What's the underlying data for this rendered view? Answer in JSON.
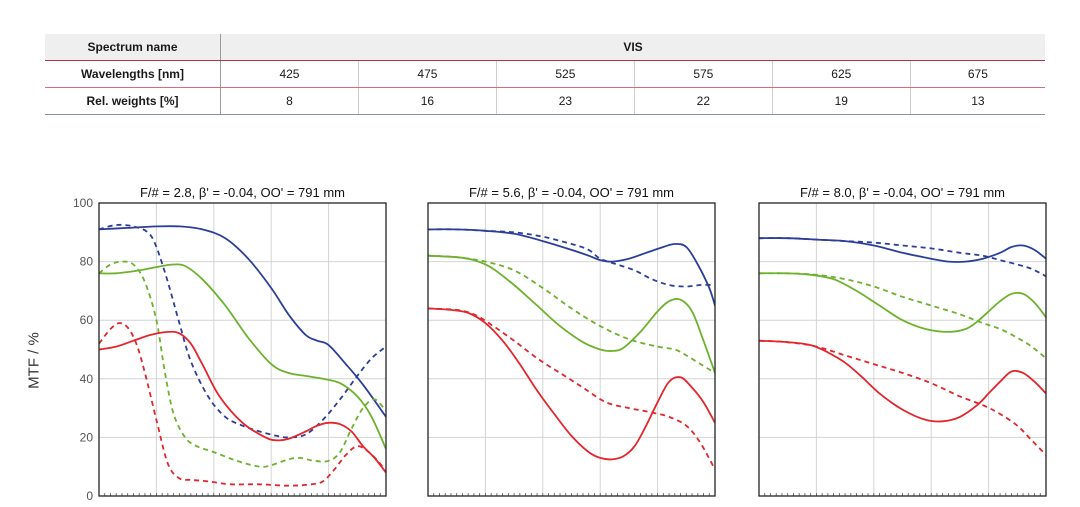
{
  "table": {
    "rows": [
      {
        "label": "Spectrum name",
        "values": [
          "VIS"
        ]
      },
      {
        "label": "Wavelengths [nm]",
        "values": [
          "425",
          "475",
          "525",
          "575",
          "625",
          "675"
        ]
      },
      {
        "label": "Rel. weights [%]",
        "values": [
          "8",
          "16",
          "23",
          "22",
          "19",
          "13"
        ]
      }
    ]
  },
  "colors": {
    "blue": "#2b3f9a",
    "green": "#6cb22d",
    "red": "#e2262c",
    "grid": "#d4d4d4",
    "frame": "#222222"
  },
  "chart_data": [
    {
      "type": "line",
      "title": "F/# = 2.8, β' = -0.04, OO' = 791 mm",
      "ylabel": "MTF / %",
      "xlabel": "",
      "ylim": [
        0,
        100
      ],
      "xlim": [
        0,
        1
      ],
      "yticks": [
        "0",
        "20",
        "40",
        "60",
        "80",
        "100"
      ],
      "grid": true,
      "series": [
        {
          "color": "blue",
          "style": "solid",
          "x": [
            0,
            0.1,
            0.2,
            0.28,
            0.36,
            0.44,
            0.52,
            0.6,
            0.66,
            0.72,
            0.76,
            0.8,
            0.86,
            0.92,
            1.0
          ],
          "y": [
            91,
            91.5,
            92,
            92,
            91,
            88,
            81,
            71,
            62,
            55,
            53,
            51.5,
            45,
            38,
            27
          ]
        },
        {
          "color": "blue",
          "style": "dashed",
          "x": [
            0,
            0.06,
            0.12,
            0.17,
            0.2,
            0.24,
            0.28,
            0.32,
            0.38,
            0.44,
            0.5,
            0.56,
            0.62,
            0.66,
            0.72,
            0.78,
            0.84,
            0.9,
            0.95,
            1.0
          ],
          "y": [
            91,
            92.5,
            92,
            90,
            85,
            73,
            59,
            46,
            34,
            27,
            24,
            22,
            20.5,
            20,
            21,
            26,
            33,
            41,
            47,
            51
          ]
        },
        {
          "color": "green",
          "style": "solid",
          "x": [
            0,
            0.06,
            0.14,
            0.22,
            0.26,
            0.3,
            0.36,
            0.44,
            0.52,
            0.6,
            0.66,
            0.72,
            0.78,
            0.84,
            0.9,
            0.95,
            1.0
          ],
          "y": [
            76,
            76,
            77,
            78.5,
            79,
            78.5,
            74,
            65,
            54,
            45,
            42,
            41,
            40,
            38.5,
            34,
            27,
            16
          ]
        },
        {
          "color": "green",
          "style": "dashed",
          "x": [
            0,
            0.04,
            0.08,
            0.12,
            0.16,
            0.2,
            0.23,
            0.26,
            0.3,
            0.34,
            0.4,
            0.48,
            0.56,
            0.6,
            0.66,
            0.7,
            0.75,
            0.8,
            0.84,
            0.88,
            0.92,
            0.96,
            1.0
          ],
          "y": [
            76,
            79,
            80,
            79,
            73,
            60,
            42,
            28,
            20,
            17,
            15,
            12,
            10,
            10.5,
            12.5,
            13,
            12,
            12,
            15,
            23,
            30,
            33,
            29
          ]
        },
        {
          "color": "red",
          "style": "solid",
          "x": [
            0,
            0.06,
            0.12,
            0.18,
            0.24,
            0.28,
            0.32,
            0.36,
            0.42,
            0.5,
            0.58,
            0.62,
            0.66,
            0.72,
            0.76,
            0.8,
            0.84,
            0.88,
            0.92,
            0.96,
            1.0
          ],
          "y": [
            50,
            51,
            53,
            55,
            56,
            55.5,
            52,
            45,
            34,
            25,
            20,
            19,
            19.5,
            22,
            24,
            25,
            24.5,
            22,
            17,
            13,
            8
          ]
        },
        {
          "color": "red",
          "style": "dashed",
          "x": [
            0,
            0.04,
            0.07,
            0.1,
            0.13,
            0.16,
            0.2,
            0.24,
            0.28,
            0.32,
            0.38,
            0.46,
            0.56,
            0.66,
            0.74,
            0.78,
            0.82,
            0.86,
            0.9,
            0.94,
            0.98,
            1.0
          ],
          "y": [
            52,
            57,
            59,
            57.5,
            52,
            42,
            26,
            11,
            6,
            5.5,
            5,
            4,
            4,
            3.5,
            4,
            5,
            9,
            14,
            17,
            15,
            11,
            8
          ]
        }
      ]
    },
    {
      "type": "line",
      "title": "F/# = 5.6, β' = -0.04, OO' = 791 mm",
      "ylabel": "",
      "xlabel": "",
      "ylim": [
        0,
        100
      ],
      "xlim": [
        0,
        1
      ],
      "yticks": [],
      "grid": true,
      "series": [
        {
          "color": "blue",
          "style": "solid",
          "x": [
            0,
            0.1,
            0.2,
            0.3,
            0.4,
            0.5,
            0.56,
            0.6,
            0.64,
            0.7,
            0.76,
            0.82,
            0.86,
            0.9,
            0.94,
            0.98,
            1.0
          ],
          "y": [
            91,
            91,
            90.5,
            89.5,
            87,
            84,
            82,
            80.5,
            80,
            81,
            83,
            85,
            86,
            85,
            79,
            71,
            65
          ]
        },
        {
          "color": "blue",
          "style": "dashed",
          "x": [
            0,
            0.1,
            0.2,
            0.3,
            0.4,
            0.5,
            0.56,
            0.6,
            0.66,
            0.72,
            0.78,
            0.84,
            0.9,
            0.95,
            1.0
          ],
          "y": [
            91,
            91,
            90.5,
            90,
            88.5,
            86,
            84,
            81,
            79,
            77,
            74,
            72,
            71.5,
            72,
            72
          ]
        },
        {
          "color": "green",
          "style": "solid",
          "x": [
            0,
            0.1,
            0.16,
            0.22,
            0.3,
            0.38,
            0.46,
            0.54,
            0.6,
            0.64,
            0.68,
            0.74,
            0.8,
            0.84,
            0.88,
            0.92,
            0.96,
            1.0
          ],
          "y": [
            82,
            81.5,
            80.5,
            78,
            72,
            65,
            58,
            52.5,
            50,
            49.5,
            50.5,
            56,
            63,
            66.5,
            67,
            63,
            53,
            42
          ]
        },
        {
          "color": "green",
          "style": "dashed",
          "x": [
            0,
            0.1,
            0.2,
            0.3,
            0.4,
            0.5,
            0.6,
            0.7,
            0.8,
            0.86,
            0.9,
            0.95,
            1.0
          ],
          "y": [
            82,
            81.5,
            80,
            77,
            71,
            64,
            58,
            53.5,
            51,
            50,
            48,
            45,
            42
          ]
        },
        {
          "color": "red",
          "style": "solid",
          "x": [
            0,
            0.08,
            0.14,
            0.2,
            0.26,
            0.32,
            0.38,
            0.44,
            0.5,
            0.56,
            0.6,
            0.64,
            0.68,
            0.72,
            0.76,
            0.8,
            0.84,
            0.88,
            0.92,
            0.96,
            1.0
          ],
          "y": [
            64,
            63.5,
            62.5,
            59,
            53,
            45,
            36,
            28,
            20.5,
            15,
            13,
            12.5,
            13.5,
            17,
            24,
            32,
            39,
            40.5,
            37,
            32,
            25
          ]
        },
        {
          "color": "red",
          "style": "dashed",
          "x": [
            0,
            0.1,
            0.16,
            0.22,
            0.3,
            0.38,
            0.46,
            0.54,
            0.62,
            0.7,
            0.78,
            0.84,
            0.9,
            0.95,
            1.0
          ],
          "y": [
            64,
            63.5,
            62,
            58.5,
            53,
            47,
            42,
            37,
            32,
            30,
            28.5,
            27,
            24,
            18,
            9
          ]
        }
      ]
    },
    {
      "type": "line",
      "title": "F/# = 8.0, β' = -0.04, OO' = 791 mm",
      "ylabel": "",
      "xlabel": "",
      "ylim": [
        0,
        100
      ],
      "xlim": [
        0,
        1
      ],
      "yticks": [],
      "grid": true,
      "series": [
        {
          "color": "blue",
          "style": "solid",
          "x": [
            0,
            0.1,
            0.2,
            0.3,
            0.4,
            0.5,
            0.6,
            0.66,
            0.72,
            0.78,
            0.84,
            0.88,
            0.92,
            0.96,
            1.0
          ],
          "y": [
            88,
            88,
            87.5,
            87,
            85.5,
            83,
            81,
            80,
            80,
            81,
            83,
            85,
            85.5,
            84,
            81
          ]
        },
        {
          "color": "blue",
          "style": "dashed",
          "x": [
            0,
            0.1,
            0.2,
            0.3,
            0.4,
            0.5,
            0.6,
            0.7,
            0.78,
            0.84,
            0.9,
            0.95,
            1.0
          ],
          "y": [
            88,
            88,
            87.5,
            87,
            86.5,
            85.5,
            84.5,
            83,
            82,
            80.5,
            79,
            77.5,
            75
          ]
        },
        {
          "color": "green",
          "style": "solid",
          "x": [
            0,
            0.1,
            0.18,
            0.26,
            0.34,
            0.42,
            0.5,
            0.58,
            0.66,
            0.72,
            0.76,
            0.8,
            0.84,
            0.88,
            0.92,
            0.96,
            1.0
          ],
          "y": [
            76,
            76,
            75.5,
            74,
            70,
            65,
            60,
            57,
            56,
            57,
            59.5,
            63,
            66.5,
            69,
            69,
            66,
            61
          ]
        },
        {
          "color": "green",
          "style": "dashed",
          "x": [
            0,
            0.1,
            0.2,
            0.3,
            0.4,
            0.5,
            0.6,
            0.7,
            0.78,
            0.84,
            0.9,
            0.95,
            1.0
          ],
          "y": [
            76,
            76,
            75.5,
            74,
            71.5,
            68,
            65,
            62,
            59,
            57,
            54,
            51,
            47
          ]
        },
        {
          "color": "red",
          "style": "solid",
          "x": [
            0,
            0.1,
            0.18,
            0.24,
            0.3,
            0.36,
            0.42,
            0.5,
            0.58,
            0.64,
            0.7,
            0.76,
            0.8,
            0.84,
            0.88,
            0.92,
            0.96,
            1.0
          ],
          "y": [
            53,
            52.5,
            51.5,
            49,
            45.5,
            40.5,
            35,
            29.5,
            26,
            25.5,
            27,
            31,
            35,
            39,
            42.5,
            42,
            39,
            35
          ]
        },
        {
          "color": "red",
          "style": "dashed",
          "x": [
            0,
            0.1,
            0.2,
            0.3,
            0.4,
            0.5,
            0.6,
            0.7,
            0.78,
            0.84,
            0.9,
            0.95,
            1.0
          ],
          "y": [
            53,
            52.5,
            51,
            48,
            45,
            42,
            38.5,
            34,
            31,
            28,
            24,
            19,
            14
          ]
        }
      ]
    }
  ]
}
